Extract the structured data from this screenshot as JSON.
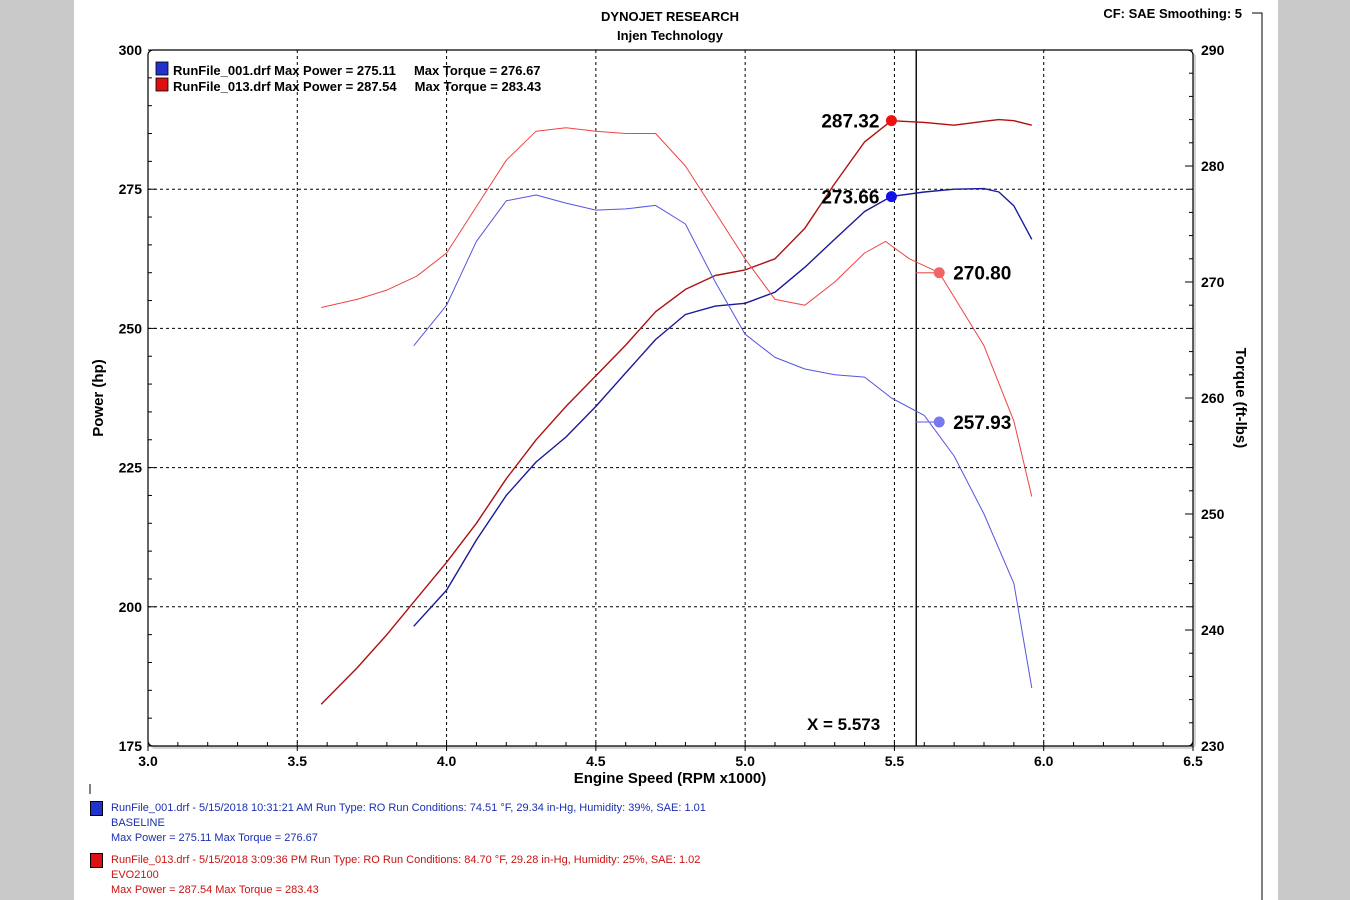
{
  "header": {
    "title": "DYNOJET RESEARCH",
    "subtitle": "Injen Technology",
    "settings": "CF: SAE  Smoothing: 5"
  },
  "chart_data": {
    "type": "line",
    "xlabel": "Engine Speed (RPM x1000)",
    "ylabel": "Power (hp)",
    "y2label": "Torque (ft-lbs)",
    "xlim": [
      3.0,
      6.5
    ],
    "ylim": [
      175,
      300
    ],
    "y2lim": [
      230,
      290
    ],
    "x_ticks": [
      "3.0",
      "3.5",
      "4.0",
      "4.5",
      "5.0",
      "5.5",
      "6.0",
      "6.5"
    ],
    "y_ticks": [
      "175",
      "200",
      "225",
      "250",
      "275",
      "300"
    ],
    "y2_ticks": [
      "230",
      "240",
      "250",
      "260",
      "270",
      "280",
      "290"
    ],
    "grid": true,
    "cursor": {
      "x": 5.573,
      "label": "X = 5.573"
    },
    "legend": [
      {
        "text": "RunFile_001.drf Max Power = 275.11     Max Torque = 276.67",
        "color": "#2233cc"
      },
      {
        "text": "RunFile_013.drf Max Power = 287.54     Max Torque = 283.43",
        "color": "#dd1111"
      }
    ],
    "series": [
      {
        "name": "RunFile_001.drf",
        "quantity": "power",
        "axis": "left",
        "color": "#1a1a9a",
        "points": [
          [
            3.89,
            196.5
          ],
          [
            4.0,
            203
          ],
          [
            4.1,
            212
          ],
          [
            4.2,
            220
          ],
          [
            4.3,
            226
          ],
          [
            4.4,
            230.5
          ],
          [
            4.5,
            236
          ],
          [
            4.6,
            242
          ],
          [
            4.7,
            248
          ],
          [
            4.8,
            252.5
          ],
          [
            4.9,
            254
          ],
          [
            5.0,
            254.5
          ],
          [
            5.1,
            256.5
          ],
          [
            5.2,
            261
          ],
          [
            5.3,
            266
          ],
          [
            5.4,
            271
          ],
          [
            5.49,
            273.7
          ],
          [
            5.6,
            274.5
          ],
          [
            5.7,
            275
          ],
          [
            5.8,
            275.1
          ],
          [
            5.85,
            274.5
          ],
          [
            5.9,
            272
          ],
          [
            5.96,
            266
          ]
        ]
      },
      {
        "name": "RunFile_013.drf",
        "quantity": "power",
        "axis": "left",
        "color": "#b01010",
        "points": [
          [
            3.58,
            182.5
          ],
          [
            3.7,
            189
          ],
          [
            3.8,
            195
          ],
          [
            3.9,
            201.5
          ],
          [
            4.0,
            208
          ],
          [
            4.1,
            215
          ],
          [
            4.2,
            223
          ],
          [
            4.3,
            230
          ],
          [
            4.4,
            236
          ],
          [
            4.5,
            241.5
          ],
          [
            4.6,
            247
          ],
          [
            4.7,
            253
          ],
          [
            4.8,
            257
          ],
          [
            4.9,
            259.5
          ],
          [
            5.0,
            260.5
          ],
          [
            5.1,
            262.5
          ],
          [
            5.2,
            268
          ],
          [
            5.3,
            276
          ],
          [
            5.4,
            283.5
          ],
          [
            5.49,
            287.3
          ],
          [
            5.6,
            287
          ],
          [
            5.7,
            286.5
          ],
          [
            5.8,
            287.2
          ],
          [
            5.85,
            287.5
          ],
          [
            5.9,
            287.3
          ],
          [
            5.96,
            286.5
          ]
        ]
      },
      {
        "name": "RunFile_001.drf",
        "quantity": "torque",
        "axis": "right",
        "color": "#5555dd",
        "points": [
          [
            3.89,
            264.5
          ],
          [
            4.0,
            268
          ],
          [
            4.1,
            273.5
          ],
          [
            4.2,
            277
          ],
          [
            4.3,
            277.5
          ],
          [
            4.4,
            276.8
          ],
          [
            4.5,
            276.2
          ],
          [
            4.6,
            276.3
          ],
          [
            4.7,
            276.6
          ],
          [
            4.8,
            275
          ],
          [
            4.9,
            270
          ],
          [
            5.0,
            265.5
          ],
          [
            5.1,
            263.5
          ],
          [
            5.2,
            262.5
          ],
          [
            5.3,
            262
          ],
          [
            5.4,
            261.8
          ],
          [
            5.49,
            260
          ],
          [
            5.6,
            258.5
          ],
          [
            5.7,
            255
          ],
          [
            5.8,
            250
          ],
          [
            5.9,
            244
          ],
          [
            5.96,
            235
          ]
        ]
      },
      {
        "name": "RunFile_013.drf",
        "quantity": "torque",
        "axis": "right",
        "color": "#ee4444",
        "points": [
          [
            3.58,
            267.8
          ],
          [
            3.7,
            268.5
          ],
          [
            3.8,
            269.3
          ],
          [
            3.9,
            270.5
          ],
          [
            4.0,
            272.5
          ],
          [
            4.1,
            276.5
          ],
          [
            4.2,
            280.5
          ],
          [
            4.3,
            283
          ],
          [
            4.4,
            283.3
          ],
          [
            4.5,
            283
          ],
          [
            4.6,
            282.8
          ],
          [
            4.7,
            282.8
          ],
          [
            4.8,
            280
          ],
          [
            4.9,
            276
          ],
          [
            5.0,
            272
          ],
          [
            5.1,
            268.5
          ],
          [
            5.2,
            268
          ],
          [
            5.3,
            270
          ],
          [
            5.4,
            272.5
          ],
          [
            5.47,
            273.5
          ],
          [
            5.55,
            272
          ],
          [
            5.65,
            270.8
          ],
          [
            5.8,
            264.5
          ],
          [
            5.9,
            258
          ],
          [
            5.96,
            251.5
          ]
        ]
      }
    ],
    "cursor_markers": [
      {
        "x": 5.49,
        "y": 287.32,
        "axis": "left",
        "label": "287.32",
        "color": "#ee1111"
      },
      {
        "x": 5.49,
        "y": 273.66,
        "axis": "left",
        "label": "273.66",
        "color": "#1111ee"
      },
      {
        "x": 5.65,
        "y": 270.8,
        "axis": "right",
        "label": "270.80",
        "color": "#ee6666"
      },
      {
        "x": 5.65,
        "y": 257.93,
        "axis": "right",
        "label": "257.93",
        "color": "#7777ee"
      }
    ]
  },
  "footer": {
    "run1": {
      "color": "#1a2fb0",
      "line1": "RunFile_001.drf - 5/15/2018 10:31:21 AM  Run Type: RO  Run Conditions: 74.51 °F, 29.34 in-Hg,  Humidity:  39%, SAE: 1.01",
      "line2": "BASELINE",
      "line3": "Max Power = 275.11  Max Torque = 276.67"
    },
    "run2": {
      "color": "#cc1111",
      "line1": "RunFile_013.drf - 5/15/2018 3:09:36 PM  Run Type: RO  Run Conditions: 84.70 °F, 29.28 in-Hg,  Humidity:  25%, SAE: 1.02",
      "line2": "EVO2100",
      "line3": "Max Power = 287.54  Max Torque = 283.43"
    }
  }
}
